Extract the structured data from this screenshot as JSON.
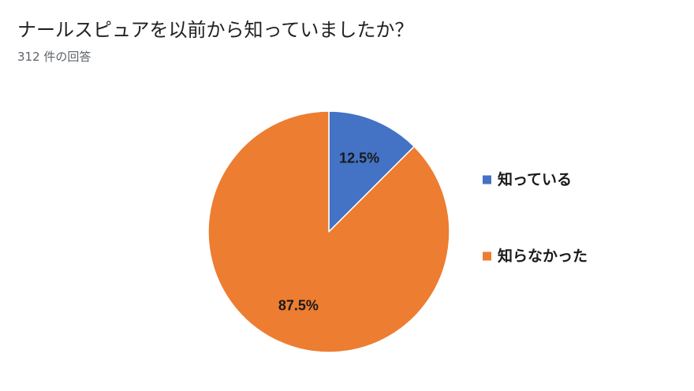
{
  "header": {
    "title": "ナールスピュアを以前から知っていましたか？",
    "response_count": "312 件の回答"
  },
  "chart_data": {
    "type": "pie",
    "legend_position": "right",
    "slices": [
      {
        "label": "知っている",
        "value": 12.5,
        "display": "12.5%",
        "color": "#4472c4"
      },
      {
        "label": "知らなかった",
        "value": 87.5,
        "display": "87.5%",
        "color": "#ed7d31"
      }
    ]
  }
}
